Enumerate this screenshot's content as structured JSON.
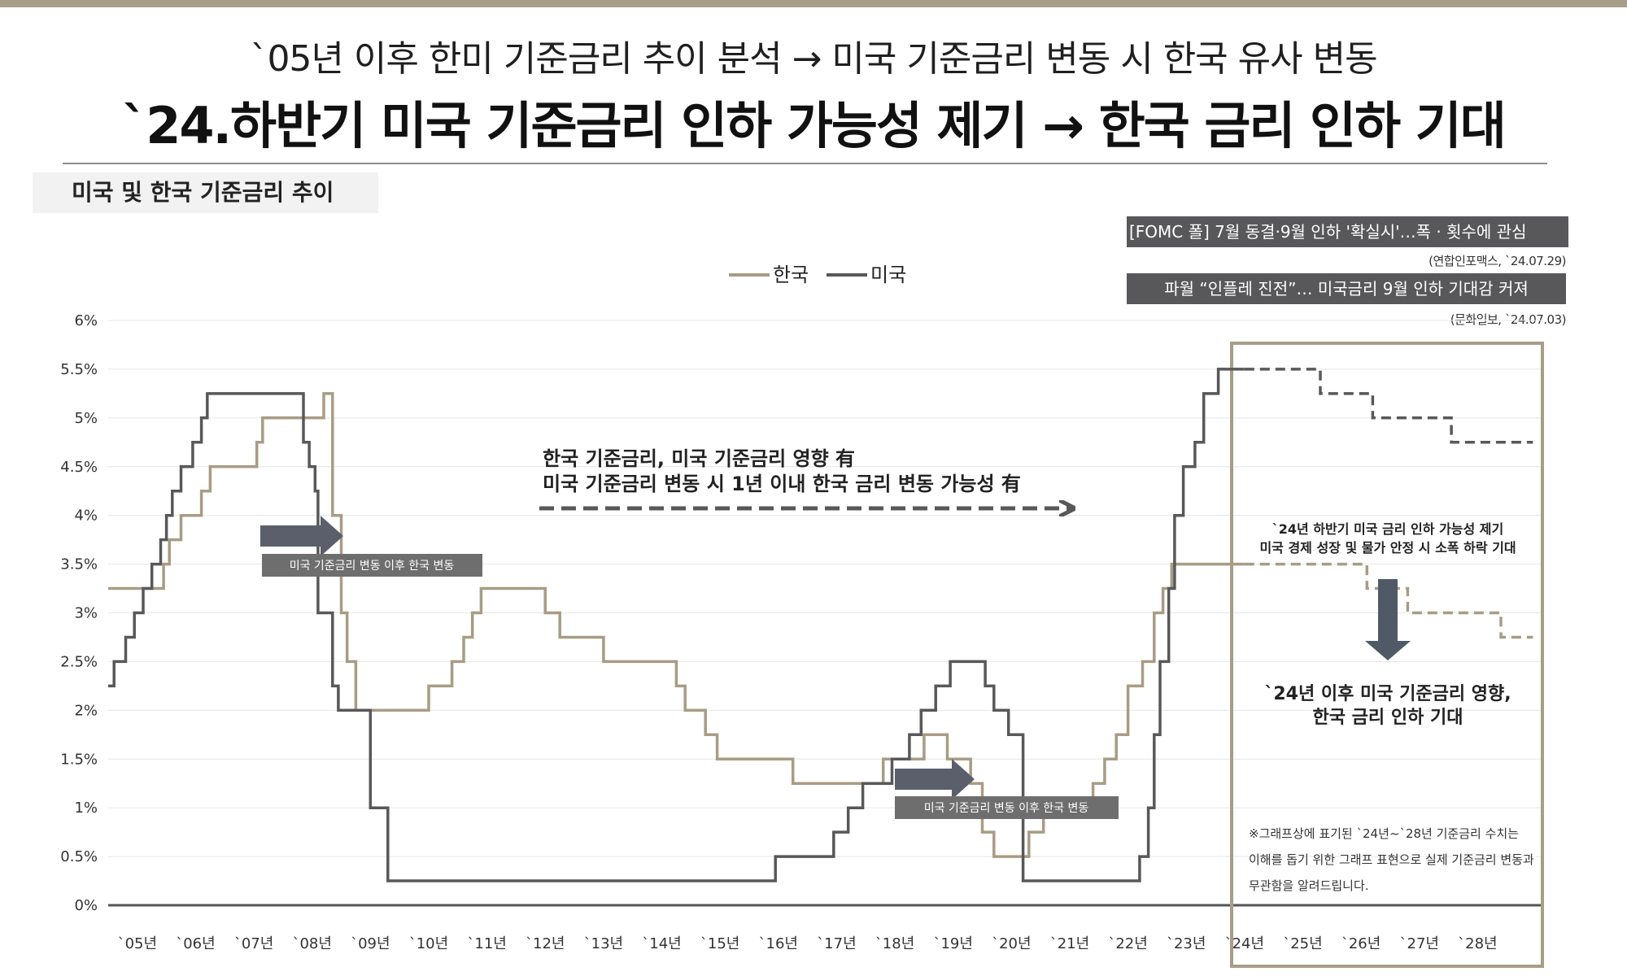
{
  "header": {
    "subtitle": "`05년 이후 한미 기준금리 추이 분석 → 미국 기준금리 변동 시 한국 유사 변동",
    "headline": "`24.하반기 미국 기준금리 인하 가능성 제기 → 한국 금리 인하 기대"
  },
  "section_label": "미국 및 한국 기준금리 추이",
  "news": [
    {
      "headline": "[FOMC 폴] 7월 동결·9월 인하 '확실시'…폭 · 횟수에 관심",
      "source": "(연합인포맥스, `24.07.29)"
    },
    {
      "headline": "파월 “인플레 진전”… 미국금리 9월 인하 기대감 커져",
      "source": "(문화일보, `24.07.03)"
    }
  ],
  "annotations": {
    "influence_line1": "한국 기준금리, 미국 기준금리 영향 有",
    "influence_line2": "미국 기준금리 변동 시 1년 이내 한국 금리 변동 가능성 有",
    "lag_label_1": "미국 기준금리 변동 이후 한국 변동",
    "lag_label_2": "미국 기준금리 변동 이후 한국 변동",
    "forecast_line1": "`24년 하반기 미국 금리 인하 가능성 제기",
    "forecast_line2": "미국 경제 성장 및 물가 안정 시 소폭 하락 기대",
    "expect_line1": "`24년 이후 미국 기준금리 영향,",
    "expect_line2": "한국 금리 인하 기대",
    "note_line1": "※그래프상에 표기된 `24년~`28년 기준금리 수치는",
    "note_line2": "이해를 돕기 위한 그래프 표현으로 실제 기준금리 변동과",
    "note_line3": "무관함을 알려드립니다."
  },
  "colors": {
    "korea": "#a89c84",
    "usa": "#58585a",
    "accent_box": "#a89d88"
  },
  "chart_data": {
    "type": "line",
    "step": true,
    "title": "미국 및 한국 기준금리 추이",
    "xlabel": "",
    "ylabel": "",
    "x_range": [
      2004.5,
      2029.0
    ],
    "y_range": [
      0,
      6
    ],
    "yticks": [
      "0%",
      "0.5%",
      "1%",
      "1.5%",
      "2%",
      "2.5%",
      "3%",
      "3.5%",
      "4%",
      "4.5%",
      "5%",
      "5.5%",
      "6%"
    ],
    "ytick_values": [
      0,
      0.5,
      1,
      1.5,
      2,
      2.5,
      3,
      3.5,
      4,
      4.5,
      5,
      5.5,
      6
    ],
    "xticks": [
      "`05년",
      "`06년",
      "`07년",
      "`08년",
      "`09년",
      "`10년",
      "`11년",
      "`12년",
      "`13년",
      "`14년",
      "`15년",
      "`16년",
      "`17년",
      "`18년",
      "`19년",
      "`20년",
      "`21년",
      "`22년",
      "`23년",
      "`24년",
      "`25년",
      "`26년",
      "`27년",
      "`28년"
    ],
    "xtick_values": [
      2005,
      2006,
      2007,
      2008,
      2009,
      2010,
      2011,
      2012,
      2013,
      2014,
      2015,
      2016,
      2017,
      2018,
      2019,
      2020,
      2021,
      2022,
      2023,
      2024,
      2025,
      2026,
      2027,
      2028
    ],
    "grid": true,
    "legend_position": "top-center",
    "series": [
      {
        "name": "한국",
        "x": [
          2004.5,
          2005.25,
          2005.3,
          2005.45,
          2005.55,
          2005.75,
          2006.1,
          2006.25,
          2006.45,
          2007.05,
          2007.15,
          2008.2,
          2008.35,
          2008.45,
          2008.5,
          2008.55,
          2008.6,
          2008.65,
          2008.75,
          2010.0,
          2010.4,
          2010.6,
          2010.75,
          2010.9,
          2011.2,
          2012.0,
          2012.25,
          2012.5,
          2013.0,
          2014.25,
          2014.4,
          2014.75,
          2014.95,
          2015.2,
          2016.25,
          2017.4,
          2017.8,
          2018.5,
          2018.9,
          2019.0,
          2019.3,
          2019.5,
          2019.7,
          2020.0,
          2020.3,
          2020.55,
          2021.4,
          2021.6,
          2021.8,
          2022.0,
          2022.25,
          2022.4,
          2022.45,
          2022.6,
          2022.75,
          2023.25
        ],
        "y": [
          3.25,
          3.25,
          3.25,
          3.5,
          3.75,
          4.0,
          4.25,
          4.5,
          4.5,
          4.75,
          5.0,
          5.25,
          4.0,
          4.0,
          3.0,
          3.0,
          2.5,
          2.5,
          2.0,
          2.25,
          2.5,
          2.75,
          3.0,
          3.25,
          3.25,
          3.0,
          2.75,
          2.75,
          2.5,
          2.25,
          2.0,
          1.75,
          1.5,
          1.5,
          1.25,
          1.25,
          1.5,
          1.75,
          1.5,
          1.5,
          1.25,
          0.75,
          0.5,
          0.5,
          0.75,
          1.0,
          1.25,
          1.5,
          1.75,
          2.25,
          2.5,
          2.5,
          3.0,
          3.25,
          3.5,
          3.5
        ],
        "x_end": 2024.0,
        "forecast_x": [
          2024.0,
          2026.1,
          2026.8,
          2028.0,
          2028.4
        ],
        "forecast_y": [
          3.5,
          3.25,
          3.0,
          3.0,
          2.75
        ],
        "forecast_x_end": 2028.95
      },
      {
        "name": "미국",
        "x": [
          2004.5,
          2004.6,
          2004.8,
          2004.95,
          2005.1,
          2005.25,
          2005.4,
          2005.5,
          2005.6,
          2005.75,
          2005.95,
          2006.1,
          2006.2,
          2006.3,
          2006.5,
          2007.7,
          2007.85,
          2007.95,
          2008.05,
          2008.1,
          2008.2,
          2008.35,
          2008.45,
          2008.8,
          2009.0,
          2009.3,
          2015.95,
          2016.95,
          2017.2,
          2017.45,
          2017.95,
          2018.25,
          2018.45,
          2018.7,
          2018.95,
          2019.55,
          2019.7,
          2019.95,
          2020.2,
          2022.2,
          2022.35,
          2022.45,
          2022.55,
          2022.7,
          2022.8,
          2022.95,
          2023.15,
          2023.3,
          2023.55
        ],
        "y": [
          2.25,
          2.5,
          2.75,
          3.0,
          3.25,
          3.5,
          3.75,
          4.0,
          4.25,
          4.5,
          4.75,
          5.0,
          5.25,
          5.25,
          5.25,
          5.25,
          4.75,
          4.5,
          4.25,
          3.0,
          3.0,
          2.25,
          2.0,
          2.0,
          1.0,
          0.25,
          0.5,
          0.75,
          1.0,
          1.25,
          1.5,
          1.75,
          2.0,
          2.25,
          2.5,
          2.25,
          2.0,
          1.75,
          0.25,
          0.5,
          1.0,
          1.75,
          2.5,
          3.25,
          4.0,
          4.5,
          4.75,
          5.25,
          5.5
        ],
        "x_end": 2024.0,
        "forecast_x": [
          2024.0,
          2025.3,
          2026.2,
          2027.55
        ],
        "forecast_y": [
          5.5,
          5.25,
          5.0,
          4.75
        ],
        "forecast_x_end": 2028.95
      }
    ]
  }
}
